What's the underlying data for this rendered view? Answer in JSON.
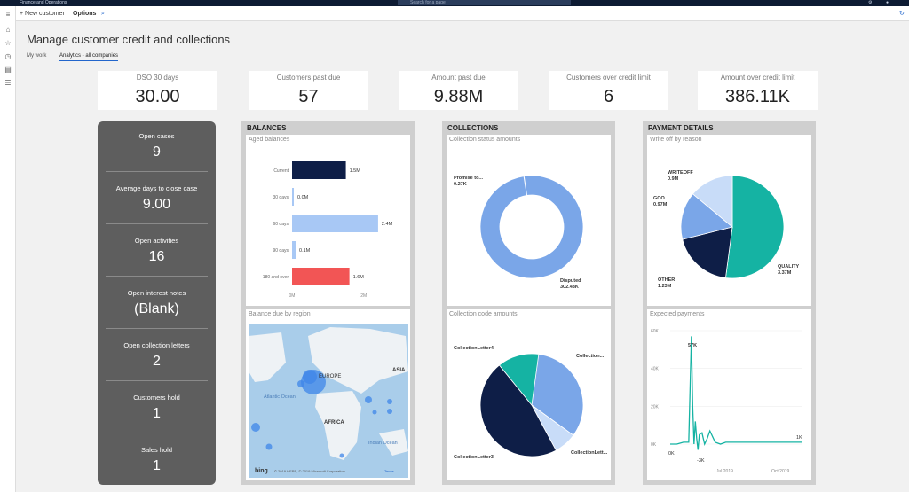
{
  "app": {
    "name": "Finance and Operations",
    "search_placeholder": "Search for a page"
  },
  "actionbar": {
    "new_label": "New customer",
    "options_label": "Options"
  },
  "page": {
    "title": "Manage customer credit and collections"
  },
  "tabs": [
    {
      "label": "My work"
    },
    {
      "label": "Analytics - all companies"
    }
  ],
  "kpis": [
    {
      "label": "DSO 30 days",
      "value": "30.00"
    },
    {
      "label": "Customers past due",
      "value": "57"
    },
    {
      "label": "Amount past due",
      "value": "9.88M"
    },
    {
      "label": "Customers over credit limit",
      "value": "6"
    },
    {
      "label": "Amount over credit limit",
      "value": "386.11K"
    }
  ],
  "stats": [
    {
      "label": "Open cases",
      "value": "9"
    },
    {
      "label": "Average days to close case",
      "value": "9.00"
    },
    {
      "label": "Open activities",
      "value": "16"
    },
    {
      "label": "Open interest notes",
      "value": "(Blank)"
    },
    {
      "label": "Open collection letters",
      "value": "2"
    },
    {
      "label": "Customers hold",
      "value": "1"
    },
    {
      "label": "Sales hold",
      "value": "1"
    }
  ],
  "panels": {
    "balances": "BALANCES",
    "collections": "COLLECTIONS",
    "payment": "PAYMENT DETAILS"
  },
  "tiles": {
    "aged": "Aged balances",
    "region": "Balance due by region",
    "status": "Collection status amounts",
    "code": "Collection code amounts",
    "writeoff": "Write off by reason",
    "expected": "Expected payments"
  },
  "map": {
    "labels": [
      "EUROPE",
      "ASIA",
      "Atlantic Ocean",
      "AFRICA",
      "Indian Ocean"
    ],
    "attribution": "© 2019 HERE, © 2019 Microsoft Corporation",
    "terms": "Terms",
    "logo": "bing"
  },
  "chart_data": [
    {
      "type": "bar",
      "title": "Aged balances",
      "orientation": "horizontal",
      "categories": [
        "Current",
        "30 days",
        "60 days",
        "90 days",
        "180 and over"
      ],
      "values": [
        1.5,
        0.0,
        2.4,
        0.1,
        1.6
      ],
      "data_labels": [
        "1.5M",
        "0.0M",
        "2.4M",
        "0.1M",
        "1.6M"
      ],
      "xticks": [
        "0M",
        "2M"
      ],
      "xlim": [
        0,
        2.6
      ],
      "colors": [
        "#0e1e47",
        "#a8c8f5",
        "#a8c8f5",
        "#a8c8f5",
        "#f25555"
      ]
    },
    {
      "type": "pie",
      "title": "Collection status amounts",
      "donut": true,
      "slices": [
        {
          "label": "Promise to...",
          "value": 0.27,
          "display": "0.27K",
          "color": "#0e1e47"
        },
        {
          "label": "Disputed",
          "value": 302.48,
          "display": "302.48K",
          "color": "#7aa6e8"
        }
      ]
    },
    {
      "type": "pie",
      "title": "Collection code amounts",
      "slices": [
        {
          "label": "Collection...",
          "value": 35,
          "color": "#7aa6e8"
        },
        {
          "label": "CollectionLett...",
          "value": 5,
          "color": "#c8dcf8"
        },
        {
          "label": "CollectionLetter3",
          "value": 47,
          "color": "#0e1e47"
        },
        {
          "label": "CollectionLetter4",
          "value": 13,
          "color": "#15b3a3"
        }
      ]
    },
    {
      "type": "pie",
      "title": "Write off by reason",
      "slices": [
        {
          "label": "QUALITY",
          "value": 3.37,
          "display": "3.37M",
          "color": "#15b3a3"
        },
        {
          "label": "OTHER",
          "value": 1.23,
          "display": "1.23M",
          "color": "#0e1e47"
        },
        {
          "label": "GOO...",
          "value": 0.97,
          "display": "0.97M",
          "color": "#7aa6e8"
        },
        {
          "label": "WRITEOFF",
          "value": 0.9,
          "display": "0.9M",
          "color": "#c8dcf8"
        }
      ]
    },
    {
      "type": "line",
      "title": "Expected payments",
      "yticks": [
        "0K",
        "20K",
        "40K",
        "60K"
      ],
      "ylim": [
        0,
        60
      ],
      "xticks": [
        "Jul 2019",
        "Oct 2019"
      ],
      "x": [
        0,
        5,
        10,
        14,
        16,
        17,
        18,
        19,
        20,
        21,
        22,
        24,
        26,
        28,
        30,
        34,
        38,
        42,
        46,
        50,
        55,
        60,
        65,
        70,
        75,
        80,
        85,
        90,
        95,
        100
      ],
      "values": [
        0,
        0,
        1,
        1,
        57,
        20,
        0,
        12,
        3,
        -3,
        5,
        6,
        0,
        3,
        7,
        1,
        0,
        1,
        1,
        1,
        1,
        1,
        1,
        1,
        1,
        1,
        1,
        1,
        1,
        1
      ],
      "annotations": [
        {
          "text": "57K"
        },
        {
          "text": "0K"
        },
        {
          "text": "-3K"
        },
        {
          "text": "1K"
        }
      ],
      "color": "#15b3a3"
    }
  ]
}
